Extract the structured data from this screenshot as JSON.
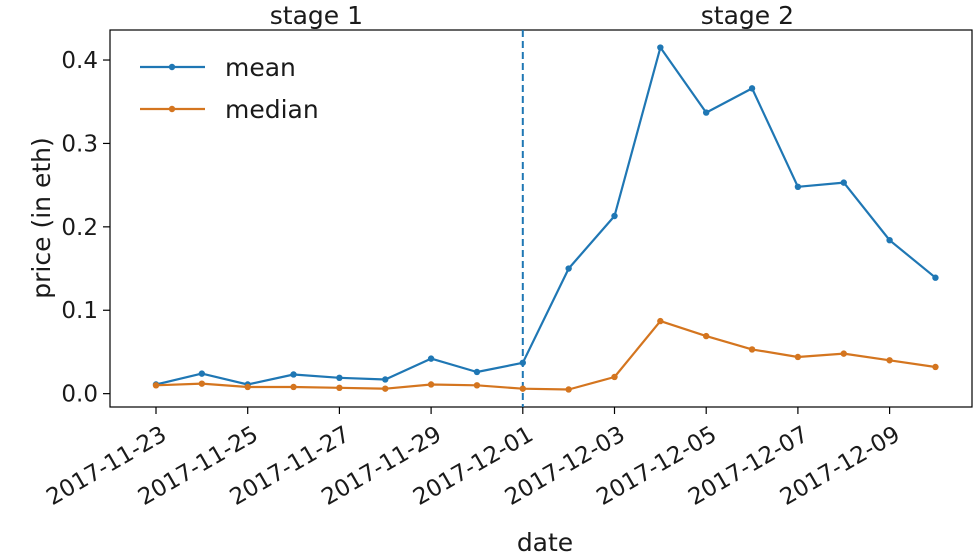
{
  "chart_data": {
    "type": "line",
    "x": [
      "2017-11-23",
      "2017-11-24",
      "2017-11-25",
      "2017-11-26",
      "2017-11-27",
      "2017-11-28",
      "2017-11-29",
      "2017-11-30",
      "2017-12-01",
      "2017-12-02",
      "2017-12-03",
      "2017-12-04",
      "2017-12-05",
      "2017-12-06",
      "2017-12-07",
      "2017-12-08",
      "2017-12-09",
      "2017-12-10"
    ],
    "x_ticks": [
      "2017-11-23",
      "2017-11-25",
      "2017-11-27",
      "2017-11-29",
      "2017-12-01",
      "2017-12-03",
      "2017-12-05",
      "2017-12-07",
      "2017-12-09"
    ],
    "y_ticks": [
      "0.0",
      "0.1",
      "0.2",
      "0.3",
      "0.4"
    ],
    "series": [
      {
        "name": "mean",
        "color": "#1f77b4",
        "values": [
          0.011,
          0.024,
          0.011,
          0.023,
          0.019,
          0.017,
          0.042,
          0.026,
          0.037,
          0.15,
          0.213,
          0.415,
          0.337,
          0.366,
          0.248,
          0.253,
          0.184,
          0.139
        ]
      },
      {
        "name": "median",
        "color": "#d4751f",
        "values": [
          0.01,
          0.012,
          0.008,
          0.008,
          0.007,
          0.006,
          0.011,
          0.01,
          0.006,
          0.005,
          0.02,
          0.087,
          0.069,
          0.053,
          0.044,
          0.048,
          0.04,
          0.032
        ]
      }
    ],
    "xlabel": "date",
    "ylabel": "price (in eth)",
    "ylim": [
      -0.016,
      0.436
    ],
    "split_date": "2017-12-01",
    "split_color": "#1f77b4",
    "stage_labels": [
      "stage 1",
      "stage 2"
    ],
    "legend_location": "top-left",
    "grid": false
  }
}
